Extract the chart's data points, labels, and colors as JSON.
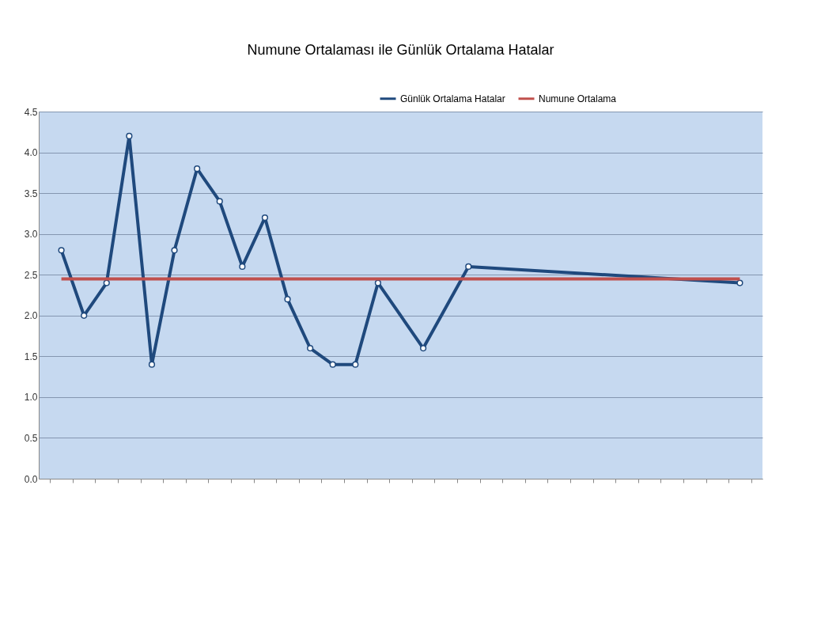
{
  "chart_data": {
    "type": "line",
    "title": "Numune Ortalaması ile Günlük Ortalama Hatalar",
    "categories": [
      null,
      null,
      null,
      null,
      null,
      null,
      null,
      null,
      null,
      null,
      null,
      null,
      null,
      null,
      null,
      null,
      null,
      null,
      null,
      null,
      null,
      null,
      null,
      null,
      null,
      null,
      null,
      null,
      null,
      null,
      null
    ],
    "series": [
      {
        "name": "Günlük Ortalama Hatalar",
        "color": "#1f497d",
        "marker": "circle",
        "values": [
          2.8,
          2.0,
          2.4,
          4.2,
          1.4,
          2.8,
          3.8,
          3.4,
          2.6,
          3.2,
          2.2,
          1.6,
          1.4,
          1.4,
          2.4,
          null,
          1.6,
          null,
          2.6,
          null,
          null,
          null,
          null,
          null,
          null,
          null,
          null,
          null,
          null,
          null,
          2.4
        ]
      },
      {
        "name": "Numune Ortalama",
        "color": "#c0504d",
        "marker": "none",
        "values": [
          2.45,
          2.45,
          2.45,
          2.45,
          2.45,
          2.45,
          2.45,
          2.45,
          2.45,
          2.45,
          2.45,
          2.45,
          2.45,
          2.45,
          2.45,
          2.45,
          2.45,
          2.45,
          2.45,
          2.45,
          2.45,
          2.45,
          2.45,
          2.45,
          2.45,
          2.45,
          2.45,
          2.45,
          2.45,
          2.45,
          2.45
        ]
      }
    ],
    "ylim": [
      0,
      4.5
    ],
    "yticks": [
      {
        "value": 0,
        "label": "0.0"
      },
      {
        "value": 0.5,
        "label": "0.5"
      },
      {
        "value": 1,
        "label": "1.0"
      },
      {
        "value": 1.5,
        "label": "1.5"
      },
      {
        "value": 2,
        "label": "2.0"
      },
      {
        "value": 2.5,
        "label": "2.5"
      },
      {
        "value": 3,
        "label": "3.0"
      },
      {
        "value": 3.5,
        "label": "3.5"
      },
      {
        "value": 4,
        "label": "4.0"
      },
      {
        "value": 4.5,
        "label": "4.5"
      }
    ],
    "grid": "y",
    "legend": "top right",
    "tick_labels": "y",
    "line_style": "solid"
  }
}
